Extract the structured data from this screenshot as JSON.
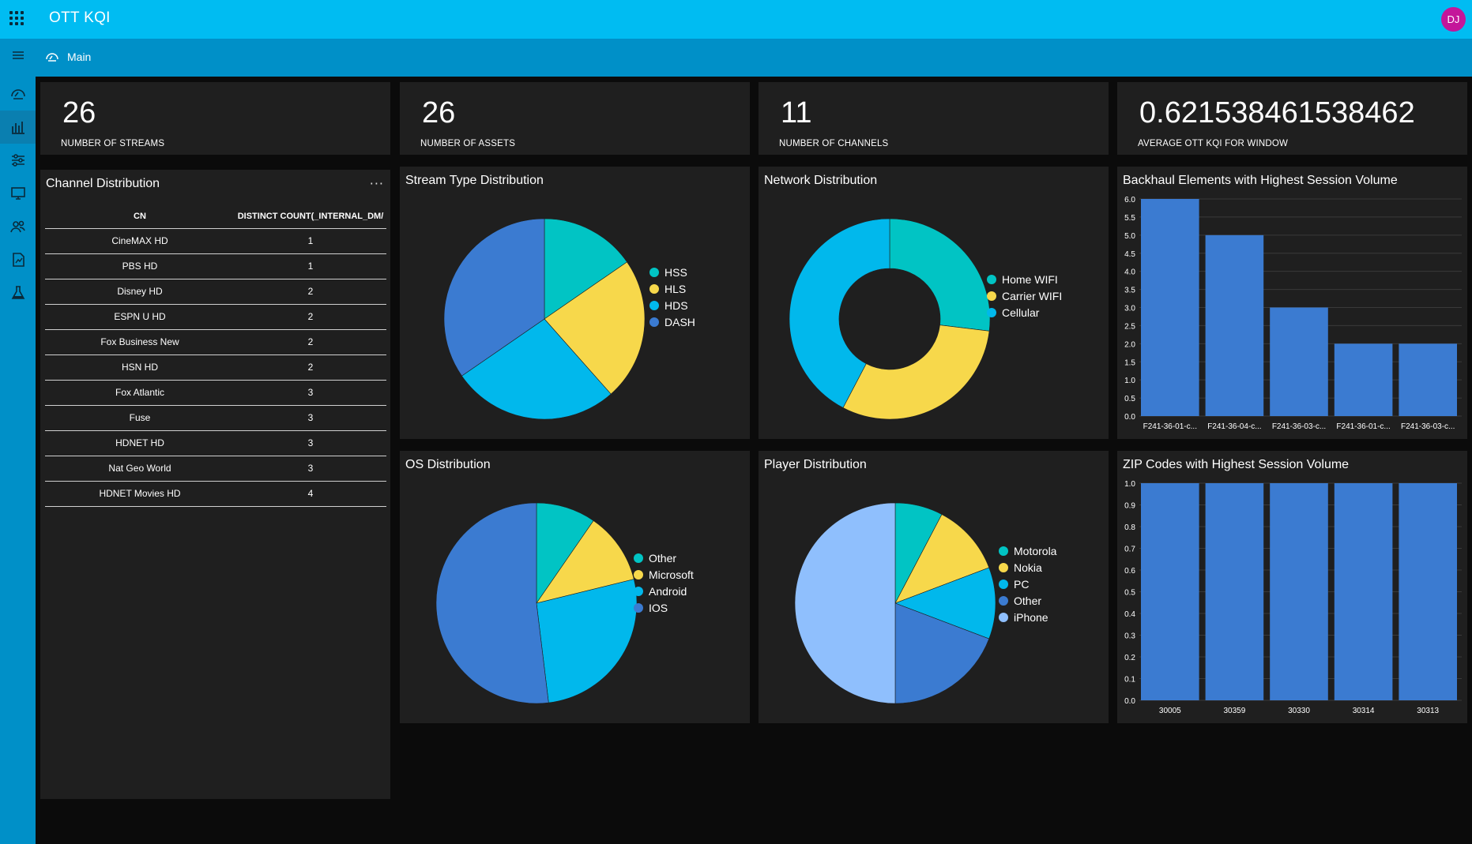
{
  "app": {
    "title": "OTT KQI",
    "avatar_initials": "DJ",
    "breadcrumb": "Main"
  },
  "sidebar": {
    "items": [
      {
        "icon": "dashboard-icon"
      },
      {
        "icon": "bar-chart-icon"
      },
      {
        "icon": "sliders-icon"
      },
      {
        "icon": "monitor-icon"
      },
      {
        "icon": "users-icon"
      },
      {
        "icon": "reports-icon"
      },
      {
        "icon": "flask-icon"
      }
    ]
  },
  "kpis": [
    {
      "value": "26",
      "label": "NUMBER OF STREAMS"
    },
    {
      "value": "26",
      "label": "NUMBER OF ASSETS"
    },
    {
      "value": "11",
      "label": "NUMBER OF CHANNELS"
    },
    {
      "value": "0.621538461538462",
      "label": "AVERAGE OTT KQI FOR WINDOW"
    }
  ],
  "channel_table": {
    "title": "Channel Distribution",
    "more": "···",
    "columns": [
      "CN",
      "DISTINCT COUNT(_INTERNAL_DM/"
    ],
    "rows": [
      [
        "CineMAX HD",
        "1"
      ],
      [
        "PBS HD",
        "1"
      ],
      [
        "Disney HD",
        "2"
      ],
      [
        "ESPN U HD",
        "2"
      ],
      [
        "Fox Business New",
        "2"
      ],
      [
        "HSN HD",
        "2"
      ],
      [
        "Fox Atlantic",
        "3"
      ],
      [
        "Fuse",
        "3"
      ],
      [
        "HDNET HD",
        "3"
      ],
      [
        "Nat Geo World",
        "3"
      ],
      [
        "HDNET Movies HD",
        "4"
      ]
    ]
  },
  "colors": {
    "teal": "#01c4c4",
    "yellow": "#f7d84b",
    "cyan": "#01b8ec",
    "blue": "#3b7bd1",
    "lightblue": "#8fbffd",
    "bar": "#3b7bd1"
  },
  "chart_data": [
    {
      "type": "pie",
      "title": "Stream Type Distribution",
      "labels": [
        "HSS",
        "HLS",
        "HDS",
        "DASH"
      ],
      "values": [
        4,
        6,
        7,
        9
      ]
    },
    {
      "type": "pie",
      "donut": true,
      "title": "Network Distribution",
      "labels": [
        "Home WIFI",
        "Carrier WIFI",
        "Cellular"
      ],
      "values": [
        7,
        8,
        11
      ]
    },
    {
      "type": "bar",
      "title": "Backhaul Elements with Highest Session Volume",
      "categories": [
        "F241-36-01-c...",
        "F241-36-04-c...",
        "F241-36-03-c...",
        "F241-36-01-c...",
        "F241-36-03-c..."
      ],
      "values": [
        6,
        5,
        3,
        2,
        2
      ],
      "ylim": [
        0,
        6
      ],
      "yticks": [
        "0.0",
        "0.5",
        "1.0",
        "1.5",
        "2.0",
        "2.5",
        "3.0",
        "3.5",
        "4.0",
        "4.5",
        "5.0",
        "5.5",
        "6.0"
      ],
      "grid": true
    },
    {
      "type": "pie",
      "title": "OS Distribution",
      "labels": [
        "Other",
        "Microsoft",
        "Android",
        "IOS"
      ],
      "values": [
        2.5,
        3.0,
        7.0,
        13.5
      ]
    },
    {
      "type": "pie",
      "title": "Player Distribution",
      "labels": [
        "Motorola",
        "Nokia",
        "PC",
        "Other",
        "iPhone"
      ],
      "values": [
        2,
        3,
        3,
        5,
        13
      ]
    },
    {
      "type": "bar",
      "title": "ZIP Codes with Highest Session Volume",
      "categories": [
        "30005",
        "30359",
        "30330",
        "30314",
        "30313"
      ],
      "values": [
        1,
        1,
        1,
        1,
        1
      ],
      "ylim": [
        0,
        1
      ],
      "yticks": [
        "0.0",
        "0.1",
        "0.2",
        "0.3",
        "0.4",
        "0.5",
        "0.6",
        "0.7",
        "0.8",
        "0.9",
        "1.0"
      ],
      "grid": true
    }
  ]
}
